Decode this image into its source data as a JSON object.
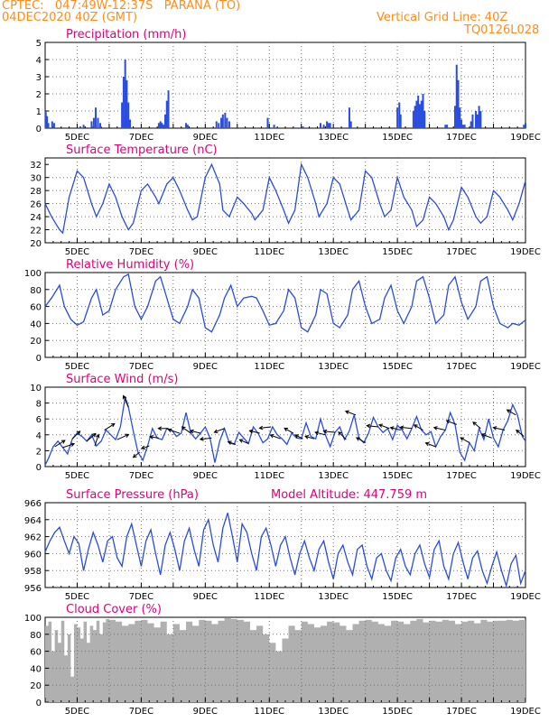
{
  "header": {
    "line1": "CPTEC:   047:49W-12:37S   PARANA (TO)",
    "line2": "04DEC2020 40Z (GMT)",
    "grid_note": "Vertical Grid Line: 40Z",
    "code": "TQ0126L028"
  },
  "colors": {
    "header": "#ff8c1a",
    "title": "#e0007a",
    "series": "#2a4de0",
    "cloud": "#b0b0b0",
    "grid": "#707070"
  },
  "chart_data": [
    {
      "id": "precip",
      "type": "bar",
      "title": "Precipitation (mm/h)",
      "ylim": [
        0,
        5
      ],
      "yticks": [
        0,
        1,
        2,
        3,
        4,
        5
      ],
      "x_domain": [
        4,
        19
      ],
      "xticks": [
        5,
        7,
        9,
        11,
        13,
        15,
        17,
        19
      ],
      "xtick_labels": [
        "5DEC",
        "7DEC",
        "9DEC",
        "11DEC",
        "13DEC",
        "15DEC",
        "17DEC",
        "19DEC"
      ],
      "x": [
        4.02,
        4.06,
        4.1,
        4.22,
        4.28,
        5.1,
        5.2,
        5.45,
        5.52,
        5.58,
        5.65,
        5.72,
        6.4,
        6.45,
        6.5,
        6.55,
        6.6,
        6.65,
        7.55,
        7.6,
        7.65,
        7.7,
        7.75,
        7.8,
        7.85,
        8.4,
        8.45,
        9.35,
        9.42,
        9.5,
        9.55,
        9.62,
        9.68,
        9.75,
        10.95,
        11.15,
        12.05,
        12.6,
        12.7,
        12.8,
        12.85,
        12.9,
        13.5,
        13.55,
        15.0,
        15.06,
        15.1,
        15.5,
        15.55,
        15.6,
        15.65,
        15.7,
        15.75,
        15.8,
        15.85,
        16.5,
        16.55,
        16.8,
        16.85,
        16.9,
        16.95,
        17.0,
        17.05,
        17.1,
        17.3,
        17.35,
        17.45,
        17.5,
        17.55,
        17.6,
        18.95,
        19.0
      ],
      "values": [
        1.0,
        0.7,
        0.3,
        0.4,
        0.3,
        0.1,
        0.2,
        0.4,
        0.6,
        1.2,
        0.6,
        0.3,
        1.5,
        3.0,
        4.0,
        2.8,
        1.5,
        0.5,
        0.3,
        0.4,
        0.3,
        0.2,
        0.8,
        1.6,
        2.2,
        0.3,
        0.2,
        0.4,
        0.3,
        0.6,
        0.8,
        0.9,
        0.6,
        0.4,
        0.6,
        0.2,
        0.1,
        0.3,
        0.2,
        0.4,
        0.3,
        0.3,
        1.2,
        0.4,
        1.2,
        1.5,
        0.8,
        1.0,
        1.3,
        1.6,
        1.9,
        1.4,
        1.6,
        2.0,
        1.0,
        0.2,
        0.2,
        1.3,
        3.7,
        2.8,
        1.2,
        0.5,
        0.2,
        0.2,
        0.4,
        0.8,
        1.0,
        0.8,
        1.3,
        1.0,
        0.2,
        0.3
      ]
    },
    {
      "id": "temp",
      "type": "line",
      "title": "Surface Temperature (nC)",
      "ylim": [
        20,
        33
      ],
      "yticks": [
        20,
        22,
        24,
        26,
        28,
        30,
        32
      ],
      "x_domain": [
        4,
        19
      ],
      "xticks": [
        5,
        7,
        9,
        11,
        13,
        15,
        17,
        19
      ],
      "xtick_labels": [
        "5DEC",
        "7DEC",
        "9DEC",
        "11DEC",
        "13DEC",
        "15DEC",
        "17DEC",
        "19DEC"
      ],
      "x": [
        4.0,
        4.2,
        4.45,
        4.55,
        4.75,
        5.0,
        5.2,
        5.45,
        5.6,
        5.8,
        6.0,
        6.2,
        6.4,
        6.6,
        6.75,
        7.0,
        7.2,
        7.45,
        7.55,
        7.8,
        8.0,
        8.2,
        8.45,
        8.6,
        8.75,
        9.0,
        9.2,
        9.45,
        9.55,
        9.75,
        10.0,
        10.2,
        10.45,
        10.55,
        10.8,
        11.0,
        11.2,
        11.45,
        11.6,
        11.8,
        12.0,
        12.2,
        12.45,
        12.55,
        12.8,
        13.0,
        13.2,
        13.45,
        13.55,
        13.8,
        14.0,
        14.2,
        14.45,
        14.6,
        14.8,
        15.0,
        15.2,
        15.45,
        15.6,
        15.8,
        16.0,
        16.2,
        16.45,
        16.6,
        16.75,
        17.0,
        17.2,
        17.45,
        17.6,
        17.8,
        18.0,
        18.2,
        18.45,
        18.6,
        18.8,
        19.0
      ],
      "values": [
        26,
        24,
        22,
        21.5,
        27,
        31,
        30,
        26,
        24,
        26,
        29,
        27,
        24,
        22,
        23,
        28,
        29,
        27,
        26,
        29,
        30,
        28,
        25,
        23.5,
        24,
        30,
        32,
        29,
        25,
        24,
        27,
        26,
        24.5,
        23.5,
        25,
        30,
        28,
        25,
        23,
        25,
        32,
        30,
        26,
        24,
        26,
        30,
        29,
        25,
        23.5,
        25,
        31,
        30,
        26,
        24,
        25,
        30,
        27,
        25,
        22.5,
        23.5,
        27,
        26,
        24,
        22,
        23.5,
        28.5,
        27,
        24,
        23,
        24,
        28,
        27,
        25,
        23.5,
        26,
        29.5
      ]
    },
    {
      "id": "rh",
      "type": "line",
      "title": "Relative Humidity (%)",
      "ylim": [
        0,
        100
      ],
      "yticks": [
        0,
        20,
        40,
        60,
        80,
        100
      ],
      "x_domain": [
        4,
        19
      ],
      "xticks": [
        5,
        7,
        9,
        11,
        13,
        15,
        17,
        19
      ],
      "xtick_labels": [
        "5DEC",
        "7DEC",
        "9DEC",
        "11DEC",
        "13DEC",
        "15DEC",
        "17DEC",
        "19DEC"
      ],
      "x": [
        4.0,
        4.2,
        4.45,
        4.6,
        4.8,
        5.0,
        5.2,
        5.45,
        5.6,
        5.8,
        6.0,
        6.2,
        6.45,
        6.6,
        6.8,
        7.0,
        7.2,
        7.45,
        7.6,
        7.8,
        8.0,
        8.2,
        8.45,
        8.6,
        8.8,
        9.0,
        9.2,
        9.45,
        9.6,
        9.8,
        10.0,
        10.2,
        10.45,
        10.6,
        10.8,
        11.0,
        11.2,
        11.45,
        11.6,
        11.8,
        12.0,
        12.2,
        12.45,
        12.6,
        12.8,
        13.0,
        13.2,
        13.45,
        13.6,
        13.8,
        14.0,
        14.2,
        14.45,
        14.6,
        14.8,
        15.0,
        15.2,
        15.45,
        15.6,
        15.8,
        16.0,
        16.2,
        16.45,
        16.6,
        16.8,
        17.0,
        17.2,
        17.45,
        17.6,
        17.8,
        18.0,
        18.2,
        18.45,
        18.6,
        18.8,
        19.0
      ],
      "values": [
        60,
        70,
        85,
        60,
        45,
        38,
        42,
        70,
        80,
        50,
        55,
        80,
        95,
        98,
        60,
        45,
        60,
        90,
        95,
        70,
        45,
        40,
        60,
        80,
        70,
        35,
        30,
        50,
        70,
        85,
        60,
        70,
        72,
        70,
        55,
        38,
        40,
        55,
        80,
        70,
        35,
        30,
        50,
        80,
        75,
        40,
        35,
        50,
        80,
        90,
        60,
        40,
        45,
        70,
        85,
        55,
        40,
        60,
        90,
        95,
        70,
        40,
        50,
        85,
        95,
        65,
        45,
        60,
        90,
        95,
        60,
        40,
        35,
        40,
        38,
        44
      ]
    },
    {
      "id": "wind",
      "type": "line",
      "title": "Surface Wind (m/s)",
      "ylim": [
        0,
        10
      ],
      "yticks": [
        0,
        2,
        4,
        6,
        8,
        10
      ],
      "x_domain": [
        4,
        19
      ],
      "xticks": [
        5,
        7,
        9,
        11,
        13,
        15,
        17,
        19
      ],
      "xtick_labels": [
        "5DEC",
        "7DEC",
        "9DEC",
        "11DEC",
        "13DEC",
        "15DEC",
        "17DEC",
        "19DEC"
      ],
      "x": [
        4.0,
        4.1,
        4.25,
        4.4,
        4.55,
        4.7,
        4.85,
        5.0,
        5.15,
        5.3,
        5.45,
        5.6,
        5.75,
        5.9,
        6.05,
        6.2,
        6.35,
        6.5,
        6.6,
        6.75,
        6.9,
        7.05,
        7.2,
        7.35,
        7.5,
        7.65,
        7.8,
        7.95,
        8.1,
        8.25,
        8.4,
        8.55,
        8.7,
        8.85,
        9.0,
        9.15,
        9.3,
        9.45,
        9.6,
        9.75,
        9.9,
        10.05,
        10.2,
        10.35,
        10.5,
        10.65,
        10.8,
        10.95,
        11.1,
        11.25,
        11.4,
        11.55,
        11.7,
        11.85,
        12.0,
        12.15,
        12.3,
        12.45,
        12.6,
        12.75,
        12.9,
        13.05,
        13.2,
        13.35,
        13.5,
        13.65,
        13.8,
        13.95,
        14.1,
        14.25,
        14.4,
        14.55,
        14.7,
        14.85,
        15.0,
        15.15,
        15.3,
        15.45,
        15.6,
        15.75,
        15.9,
        16.05,
        16.2,
        16.35,
        16.5,
        16.65,
        16.8,
        16.95,
        17.1,
        17.25,
        17.4,
        17.55,
        17.7,
        17.85,
        18.0,
        18.15,
        18.3,
        18.45,
        18.6,
        18.75,
        18.9,
        19.0
      ],
      "values": [
        0.2,
        1,
        2.5,
        3.2,
        2.4,
        1.6,
        3.5,
        4.2,
        3.8,
        3.2,
        4.0,
        2.6,
        3.2,
        4.6,
        4.0,
        3.4,
        5.0,
        8.8,
        7.5,
        4.5,
        1.8,
        0.8,
        2.6,
        4.8,
        3.6,
        3.4,
        4.8,
        4.6,
        3.8,
        4.2,
        6.8,
        4.2,
        3.5,
        4.2,
        5.0,
        3.6,
        0.5,
        3.2,
        4.8,
        3.0,
        2.8,
        4.3,
        3.6,
        2.9,
        5.0,
        4.2,
        3.0,
        3.5,
        5.0,
        4.0,
        3.5,
        2.8,
        4.2,
        3.6,
        3.5,
        5.5,
        3.8,
        3.5,
        6.0,
        4.0,
        2.5,
        4.3,
        5.0,
        3.4,
        4.5,
        6.5,
        3.6,
        3.0,
        4.2,
        6.2,
        5.0,
        4.3,
        4.8,
        3.4,
        5.2,
        4.6,
        3.5,
        4.8,
        6.3,
        4.6,
        4.0,
        4.4,
        2.5,
        3.8,
        4.6,
        6.8,
        5.3,
        1.8,
        0.8,
        3.0,
        2.0,
        4.8,
        3.4,
        6.0,
        3.6,
        2.5,
        4.6,
        5.8,
        7.8,
        6.5,
        3.8,
        3.2
      ],
      "arrows_x": [
        4.3,
        4.55,
        4.85,
        5.3,
        5.55,
        5.85,
        6.25,
        6.6,
        6.95,
        7.25,
        7.55,
        7.85,
        8.2,
        8.55,
        8.85,
        9.2,
        9.6,
        9.95,
        10.35,
        10.7,
        11.05,
        11.35,
        11.75,
        12.05,
        12.4,
        12.75,
        13.05,
        13.4,
        13.7,
        14.0,
        14.4,
        14.75,
        15.1,
        15.45,
        15.8,
        16.2,
        16.5,
        16.85,
        17.25,
        17.6,
        17.95,
        18.35,
        18.7,
        18.95
      ],
      "arrows_u": [
        0.8,
        0.9,
        0.6,
        0.7,
        0.3,
        0.8,
        0.9,
        -0.4,
        -0.5,
        -0.6,
        -0.7,
        -0.8,
        -0.9,
        -0.7,
        -0.8,
        -0.9,
        -0.8,
        -0.6,
        -0.7,
        -0.8,
        -0.9,
        -0.8,
        -0.7,
        -0.6,
        -0.7,
        -0.8,
        -0.9,
        -0.6,
        -0.8,
        -0.7,
        -0.9,
        -0.8,
        -0.8,
        -0.9,
        -0.7,
        -0.8,
        -0.9,
        -0.8,
        -0.7,
        -0.6,
        -0.8,
        -0.9,
        -0.7,
        -0.6
      ],
      "arrows_v": [
        0.5,
        0.3,
        0.6,
        0.6,
        0.9,
        0.5,
        0.4,
        0.9,
        -0.4,
        -0.2,
        0.1,
        0.0,
        0.3,
        0.5,
        0.2,
        -0.1,
        -0.3,
        0.2,
        0.3,
        0.2,
        -0.1,
        0.3,
        0.4,
        0.3,
        0.2,
        0.2,
        0.1,
        0.6,
        0.3,
        0.4,
        0.1,
        0.3,
        0.2,
        0.1,
        0.4,
        0.3,
        0.2,
        0.3,
        0.4,
        0.5,
        0.3,
        0.2,
        0.4,
        0.5
      ]
    },
    {
      "id": "pres",
      "type": "line",
      "title": "Surface Pressure (hPa)",
      "annotation": "Model Altitude: 447.759  m",
      "ylim": [
        956,
        966
      ],
      "yticks": [
        956,
        958,
        960,
        962,
        964,
        966
      ],
      "x_domain": [
        4,
        19
      ],
      "xticks": [
        5,
        7,
        9,
        11,
        13,
        15,
        17,
        19
      ],
      "xtick_labels": [
        "5DEC",
        "7DEC",
        "9DEC",
        "11DEC",
        "13DEC",
        "15DEC",
        "17DEC",
        "19DEC"
      ],
      "x": [
        4.0,
        4.15,
        4.3,
        4.45,
        4.6,
        4.75,
        4.9,
        5.05,
        5.2,
        5.35,
        5.5,
        5.65,
        5.8,
        5.95,
        6.1,
        6.25,
        6.4,
        6.55,
        6.7,
        6.85,
        7.0,
        7.15,
        7.3,
        7.45,
        7.6,
        7.75,
        7.9,
        8.05,
        8.2,
        8.35,
        8.5,
        8.65,
        8.8,
        8.95,
        9.1,
        9.25,
        9.4,
        9.55,
        9.7,
        9.85,
        10.0,
        10.15,
        10.3,
        10.45,
        10.6,
        10.75,
        10.9,
        11.05,
        11.2,
        11.35,
        11.5,
        11.65,
        11.8,
        11.95,
        12.1,
        12.25,
        12.4,
        12.55,
        12.7,
        12.85,
        13.0,
        13.15,
        13.3,
        13.45,
        13.6,
        13.75,
        13.9,
        14.05,
        14.2,
        14.35,
        14.5,
        14.65,
        14.8,
        14.95,
        15.1,
        15.25,
        15.4,
        15.55,
        15.7,
        15.85,
        16.0,
        16.15,
        16.3,
        16.45,
        16.6,
        16.75,
        16.9,
        17.05,
        17.2,
        17.35,
        17.5,
        17.65,
        17.8,
        17.95,
        18.1,
        18.25,
        18.4,
        18.55,
        18.7,
        18.85,
        19.0
      ],
      "values": [
        960.2,
        961.5,
        962.5,
        963.1,
        961.5,
        960.0,
        962.0,
        961.2,
        958.0,
        960.5,
        962.5,
        961.0,
        959.0,
        961.5,
        962.0,
        959.5,
        958.5,
        962.0,
        963.5,
        961.0,
        958.5,
        961.5,
        962.8,
        960.0,
        957.5,
        961.0,
        962.5,
        960.5,
        958.0,
        961.5,
        963.0,
        960.5,
        958.5,
        962.8,
        964.0,
        961.0,
        959.0,
        963.0,
        964.8,
        962.0,
        959.0,
        963.5,
        962.5,
        960.0,
        958.0,
        962.0,
        963.0,
        961.0,
        958.5,
        961.0,
        962.0,
        959.5,
        957.5,
        960.0,
        961.5,
        959.5,
        958.0,
        960.5,
        961.5,
        959.0,
        957.0,
        960.0,
        961.0,
        959.0,
        957.5,
        960.5,
        961.0,
        958.5,
        957.0,
        959.5,
        960.0,
        958.0,
        956.8,
        959.5,
        960.5,
        958.5,
        957.5,
        960.0,
        961.0,
        958.8,
        957.2,
        960.5,
        961.5,
        958.5,
        957.0,
        960.0,
        961.3,
        959.0,
        957.0,
        959.5,
        960.3,
        958.0,
        956.5,
        958.5,
        960.2,
        958.0,
        956.2,
        958.8,
        959.8,
        956.5,
        958.0
      ]
    },
    {
      "id": "cloud",
      "type": "area",
      "title": "Cloud Cover (%)",
      "ylim": [
        0,
        100
      ],
      "yticks": [
        0,
        20,
        40,
        60,
        80,
        100
      ],
      "x_domain": [
        4,
        19
      ],
      "xticks": [
        5,
        7,
        9,
        11,
        13,
        15,
        17,
        19
      ],
      "xtick_labels": [
        "5DEC",
        "7DEC",
        "9DEC",
        "11DEC",
        "13DEC",
        "15DEC",
        "17DEC",
        "19DEC"
      ],
      "x": [
        4.0,
        4.1,
        4.2,
        4.3,
        4.4,
        4.5,
        4.6,
        4.7,
        4.8,
        4.9,
        5.0,
        5.1,
        5.2,
        5.3,
        5.4,
        5.5,
        5.6,
        5.7,
        5.8,
        5.9,
        6.0,
        6.2,
        6.4,
        6.6,
        6.8,
        7.0,
        7.2,
        7.4,
        7.6,
        7.8,
        8.0,
        8.2,
        8.4,
        8.6,
        8.8,
        9.0,
        9.2,
        9.4,
        9.6,
        9.8,
        10.0,
        10.2,
        10.4,
        10.6,
        10.8,
        11.0,
        11.2,
        11.4,
        11.6,
        11.8,
        12.0,
        12.2,
        12.4,
        12.6,
        12.8,
        13.0,
        13.2,
        13.4,
        13.6,
        13.8,
        14.0,
        14.2,
        14.4,
        14.6,
        14.8,
        15.0,
        15.2,
        15.4,
        15.6,
        15.8,
        16.0,
        16.2,
        16.4,
        16.6,
        16.8,
        17.0,
        17.2,
        17.4,
        17.6,
        17.8,
        18.0,
        18.2,
        18.4,
        18.6,
        18.8,
        19.0
      ],
      "values": [
        90,
        95,
        60,
        85,
        70,
        96,
        55,
        80,
        30,
        92,
        88,
        75,
        95,
        70,
        90,
        85,
        96,
        80,
        94,
        98,
        97,
        95,
        90,
        92,
        96,
        97,
        93,
        88,
        95,
        80,
        92,
        85,
        95,
        90,
        97,
        96,
        92,
        96,
        99,
        98,
        97,
        95,
        85,
        90,
        80,
        70,
        60,
        75,
        90,
        85,
        95,
        92,
        88,
        90,
        95,
        94,
        90,
        85,
        92,
        96,
        97,
        95,
        92,
        90,
        96,
        95,
        92,
        96,
        98,
        94,
        96,
        95,
        97,
        96,
        92,
        95,
        96,
        93,
        97,
        95,
        96,
        96,
        97,
        96,
        97,
        98
      ]
    }
  ]
}
